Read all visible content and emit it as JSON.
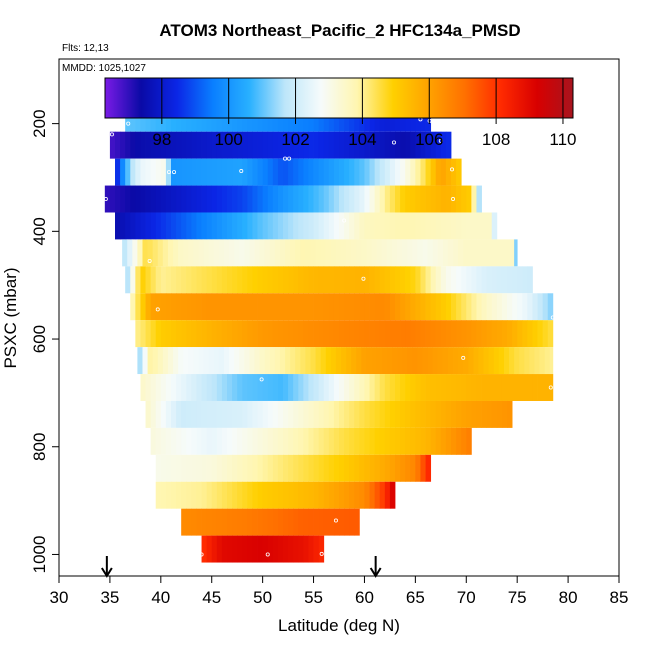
{
  "chart_data": {
    "type": "heatmap",
    "title": "ATOM3 Northeast_Pacific_2 HFC134a_PMSD",
    "subtitle_flights": "Flts: 12,13",
    "subtitle_dates": "MMDD: 1025,1027",
    "xlabel": "Latitude (deg N)",
    "ylabel": "PSXC (mbar)",
    "xlim": [
      30,
      85
    ],
    "ylim": [
      1040,
      80
    ],
    "x_ticks": [
      "30",
      "35",
      "40",
      "45",
      "50",
      "55",
      "60",
      "65",
      "70",
      "75",
      "80",
      "85"
    ],
    "y_ticks": [
      "200",
      "400",
      "600",
      "800",
      "1000"
    ],
    "colorbar": {
      "min": 96.3,
      "max": 110.3,
      "ticks": [
        "98",
        "100",
        "102",
        "104",
        "106",
        "108",
        "110"
      ]
    },
    "arrows_latitude": [
      34.7,
      61.1
    ],
    "bands": [
      {
        "p_top": 165,
        "p_bottom": 215,
        "lat_min": 36.5,
        "lat_max": 66.5,
        "stops": [
          [
            36.5,
            101.0
          ],
          [
            45,
            100.3
          ],
          [
            55,
            99.5
          ],
          [
            62,
            98.2
          ],
          [
            66.5,
            98.5
          ]
        ]
      },
      {
        "p_top": 215,
        "p_bottom": 265,
        "lat_min": 35.0,
        "lat_max": 68.5,
        "stops": [
          [
            35,
            96.8
          ],
          [
            38,
            97.5
          ],
          [
            45,
            98.0
          ],
          [
            55,
            98.5
          ],
          [
            60,
            98.0
          ],
          [
            64,
            97.5
          ],
          [
            68,
            98.5
          ]
        ]
      },
      {
        "p_top": 265,
        "p_bottom": 315,
        "lat_min": 35.5,
        "lat_max": 69.5,
        "stops": [
          [
            35.5,
            98.0
          ],
          [
            37,
            101.5
          ],
          [
            38,
            102.5
          ],
          [
            40.5,
            103.0
          ],
          [
            41,
            100.0
          ],
          [
            48,
            100.3
          ],
          [
            52,
            99.0
          ],
          [
            60,
            101.0
          ],
          [
            64,
            103.0
          ],
          [
            66,
            104.5
          ],
          [
            67.5,
            106.0
          ],
          [
            69.5,
            105.0
          ]
        ]
      },
      {
        "p_top": 315,
        "p_bottom": 365,
        "lat_min": 34.5,
        "lat_max": 71.5,
        "stops": [
          [
            34.5,
            97.0
          ],
          [
            42,
            98.0
          ],
          [
            48,
            98.8
          ],
          [
            52,
            100.0
          ],
          [
            56,
            101.0
          ],
          [
            60,
            102.5
          ],
          [
            62,
            104.0
          ],
          [
            64,
            105.0
          ],
          [
            68,
            105.6
          ],
          [
            70.5,
            105.0
          ],
          [
            71.5,
            100.5
          ]
        ]
      },
      {
        "p_top": 365,
        "p_bottom": 415,
        "lat_min": 35.5,
        "lat_max": 73.0,
        "stops": [
          [
            35.5,
            97.5
          ],
          [
            45,
            99.8
          ],
          [
            50,
            101.0
          ],
          [
            55,
            102.0
          ],
          [
            60,
            103.6
          ],
          [
            64,
            103.8
          ],
          [
            70,
            103.5
          ],
          [
            72.5,
            103.5
          ],
          [
            73,
            101.0
          ]
        ]
      },
      {
        "p_top": 415,
        "p_bottom": 465,
        "lat_min": 36.2,
        "lat_max": 75.0,
        "stops": [
          [
            36.2,
            101.5
          ],
          [
            37.5,
            103.0
          ],
          [
            38.5,
            104.5
          ],
          [
            42,
            103.5
          ],
          [
            48,
            103.0
          ],
          [
            54,
            103.8
          ],
          [
            60,
            103.5
          ],
          [
            66,
            103.0
          ],
          [
            70,
            103.5
          ],
          [
            74.5,
            103.5
          ],
          [
            75,
            101.0
          ]
        ]
      },
      {
        "p_top": 465,
        "p_bottom": 515,
        "lat_min": 36.5,
        "lat_max": 76.5,
        "stops": [
          [
            36.5,
            101.0
          ],
          [
            38,
            105.0
          ],
          [
            40,
            104.0
          ],
          [
            48,
            104.8
          ],
          [
            55,
            105.5
          ],
          [
            60,
            105.6
          ],
          [
            65,
            104.8
          ],
          [
            68,
            103.0
          ],
          [
            72,
            102.2
          ],
          [
            76.5,
            102.0
          ]
        ]
      },
      {
        "p_top": 515,
        "p_bottom": 565,
        "lat_min": 37.0,
        "lat_max": 78.5,
        "stops": [
          [
            37,
            103.5
          ],
          [
            39,
            106.0
          ],
          [
            45,
            106.3
          ],
          [
            55,
            106.3
          ],
          [
            62,
            106.5
          ],
          [
            68,
            105.0
          ],
          [
            72,
            103.5
          ],
          [
            76,
            102.5
          ],
          [
            78.5,
            101.2
          ]
        ]
      },
      {
        "p_top": 565,
        "p_bottom": 615,
        "lat_min": 37.5,
        "lat_max": 78.5,
        "stops": [
          [
            37.5,
            104.0
          ],
          [
            40,
            105.0
          ],
          [
            50,
            106.2
          ],
          [
            58,
            106.6
          ],
          [
            64,
            106.8
          ],
          [
            70,
            106.3
          ],
          [
            74,
            105.8
          ],
          [
            78.5,
            104.5
          ]
        ]
      },
      {
        "p_top": 615,
        "p_bottom": 665,
        "lat_min": 37.7,
        "lat_max": 78.5,
        "stops": [
          [
            37.7,
            101.0
          ],
          [
            39,
            104.0
          ],
          [
            42,
            102.8
          ],
          [
            46,
            102.5
          ],
          [
            50,
            103.5
          ],
          [
            55,
            104.5
          ],
          [
            60,
            106.0
          ],
          [
            65,
            106.3
          ],
          [
            70,
            105.8
          ],
          [
            75,
            104.5
          ],
          [
            78.5,
            104.0
          ]
        ]
      },
      {
        "p_top": 665,
        "p_bottom": 715,
        "lat_min": 38.0,
        "lat_max": 78.5,
        "stops": [
          [
            38,
            103.5
          ],
          [
            42,
            102.5
          ],
          [
            48,
            101.0
          ],
          [
            52,
            100.8
          ],
          [
            55,
            101.8
          ],
          [
            58,
            103.0
          ],
          [
            62,
            104.5
          ],
          [
            66,
            105.3
          ],
          [
            72,
            105.6
          ],
          [
            78.5,
            105.6
          ]
        ]
      },
      {
        "p_top": 715,
        "p_bottom": 765,
        "lat_min": 38.5,
        "lat_max": 74.5,
        "stops": [
          [
            38.5,
            103.5
          ],
          [
            42,
            102.0
          ],
          [
            48,
            102.2
          ],
          [
            55,
            103.5
          ],
          [
            60,
            104.5
          ],
          [
            65,
            105.3
          ],
          [
            70,
            106.0
          ],
          [
            74.5,
            106.3
          ]
        ]
      },
      {
        "p_top": 765,
        "p_bottom": 815,
        "lat_min": 39.0,
        "lat_max": 70.5,
        "stops": [
          [
            39,
            103.2
          ],
          [
            45,
            102.5
          ],
          [
            52,
            103.5
          ],
          [
            58,
            104.5
          ],
          [
            62,
            105.0
          ],
          [
            66,
            105.5
          ],
          [
            70.5,
            106.8
          ]
        ]
      },
      {
        "p_top": 815,
        "p_bottom": 865,
        "lat_min": 39.5,
        "lat_max": 66.5,
        "stops": [
          [
            39.5,
            103.0
          ],
          [
            45,
            103.2
          ],
          [
            52,
            104.2
          ],
          [
            58,
            105.0
          ],
          [
            62,
            105.8
          ],
          [
            65,
            106.6
          ],
          [
            66.5,
            108.5
          ]
        ]
      },
      {
        "p_top": 865,
        "p_bottom": 915,
        "lat_min": 39.5,
        "lat_max": 63.0,
        "stops": [
          [
            39.5,
            103.8
          ],
          [
            44,
            104.0
          ],
          [
            50,
            105.0
          ],
          [
            55,
            105.5
          ],
          [
            60,
            106.5
          ],
          [
            62,
            108.0
          ],
          [
            63,
            109.5
          ]
        ]
      },
      {
        "p_top": 915,
        "p_bottom": 965,
        "lat_min": 42.0,
        "lat_max": 59.5,
        "stops": [
          [
            42,
            106.5
          ],
          [
            48,
            106.8
          ],
          [
            54,
            107.3
          ],
          [
            59.5,
            107.4
          ]
        ]
      },
      {
        "p_top": 965,
        "p_bottom": 1015,
        "lat_min": 44.0,
        "lat_max": 56.0,
        "stops": [
          [
            44,
            108.0
          ],
          [
            46,
            109.0
          ],
          [
            50,
            109.2
          ],
          [
            54,
            108.8
          ],
          [
            56,
            108.2
          ]
        ]
      }
    ],
    "sample_points": [
      [
        36.8,
        200
      ],
      [
        65.5,
        192
      ],
      [
        66.4,
        195
      ],
      [
        35.2,
        220
      ],
      [
        62.9,
        235
      ],
      [
        67.5,
        232
      ],
      [
        40.8,
        290
      ],
      [
        41.3,
        290
      ],
      [
        47.9,
        288
      ],
      [
        52.2,
        265
      ],
      [
        52.6,
        265
      ],
      [
        68.6,
        285
      ],
      [
        34.6,
        340
      ],
      [
        58.0,
        380
      ],
      [
        68.7,
        340
      ],
      [
        38.9,
        455
      ],
      [
        59.9,
        488
      ],
      [
        39.7,
        545
      ],
      [
        78.5,
        560
      ],
      [
        69.7,
        635
      ],
      [
        37.8,
        690
      ],
      [
        49.9,
        675
      ],
      [
        78.3,
        690
      ],
      [
        57.2,
        937
      ],
      [
        44.0,
        1000
      ],
      [
        50.5,
        1000
      ],
      [
        55.8,
        999
      ]
    ]
  }
}
